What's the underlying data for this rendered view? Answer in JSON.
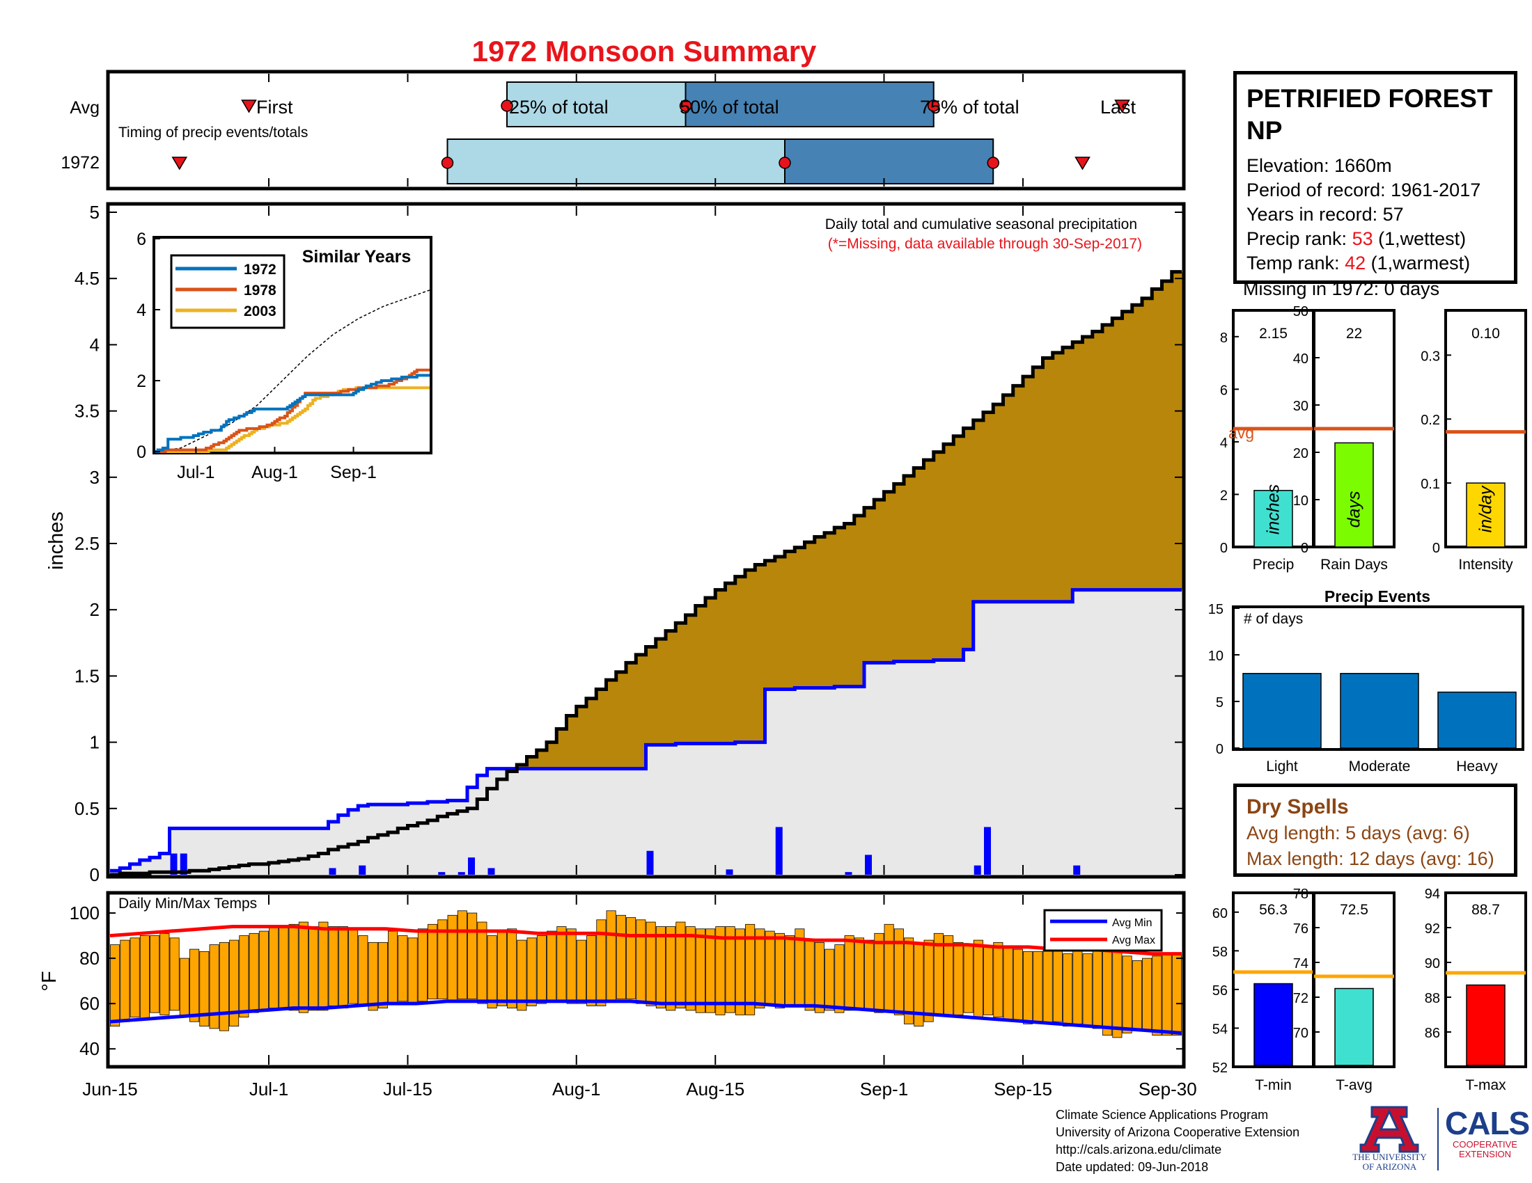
{
  "title": "1972 Monsoon Summary",
  "timing": {
    "row_labels": [
      "Avg",
      "1972"
    ],
    "caption": "Timing of precip events/totals",
    "avg_labels": {
      "first": "First",
      "p25": "25% of total",
      "p50": "50% of total",
      "p75": "75% of total",
      "last": "Last"
    }
  },
  "main": {
    "ylabel": "inches",
    "yticks": [
      "0",
      "0.5",
      "1",
      "1.5",
      "2",
      "2.5",
      "3",
      "3.5",
      "4",
      "4.5",
      "5"
    ],
    "note1": "Daily total and cumulative seasonal precipitation",
    "note2": "(*=Missing, data available through 30-Sep-2017)"
  },
  "inset": {
    "title": "Similar Years",
    "yticks": [
      "0",
      "2",
      "4",
      "6"
    ],
    "xticks": [
      "Jul-1",
      "Aug-1",
      "Sep-1"
    ],
    "legend": [
      "1972",
      "1978",
      "2003"
    ]
  },
  "temps": {
    "label": "Daily Min/Max Temps",
    "ylabel": "°F",
    "yticks": [
      "40",
      "60",
      "80",
      "100"
    ],
    "legend": [
      "Avg Min",
      "Avg Max"
    ]
  },
  "xticks": [
    "Jun-15",
    "Jul-1",
    "Jul-15",
    "Aug-1",
    "Aug-15",
    "Sep-1",
    "Sep-15",
    "Sep-30"
  ],
  "station": {
    "name": "PETRIFIED FOREST NP",
    "elevation": "Elevation: 1660m",
    "period": "Period of record: 1961-2017",
    "years": "Years in record: 57",
    "precip_rank_label": "Precip rank: ",
    "precip_rank": "53",
    "precip_rank_note": " (1,wettest)",
    "temp_rank_label": "Temp rank: ",
    "temp_rank": "42",
    "temp_rank_note": " (1,warmest)",
    "missing": "Missing in 1972: 0 days"
  },
  "mini_precip": {
    "avg_label": "avg",
    "panels": [
      {
        "name": "Precip",
        "value_text": "2.15",
        "unit": "inches",
        "yticks": [
          "0",
          "2",
          "4",
          "6",
          "8"
        ]
      },
      {
        "name": "Rain Days",
        "value_text": "22",
        "unit": "days",
        "yticks": [
          "0",
          "10",
          "20",
          "30",
          "40",
          "50"
        ]
      },
      {
        "name": "Intensity",
        "value_text": "0.10",
        "unit": "in/day",
        "yticks": [
          "0",
          "0.1",
          "0.2",
          "0.3"
        ]
      }
    ]
  },
  "events": {
    "title": "Precip Events",
    "ylabel": "# of days",
    "yticks": [
      "0",
      "5",
      "10",
      "15"
    ]
  },
  "dry_spells": {
    "title": "Dry Spells",
    "avg_length": "Avg length: 5 days (avg: 6)",
    "max_length": "Max length: 12 days (avg: 16)"
  },
  "mini_temp": {
    "panels": [
      {
        "name": "T-min",
        "value_text": "56.3",
        "yticks": [
          "52",
          "54",
          "56",
          "58",
          "60"
        ]
      },
      {
        "name": "T-avg",
        "value_text": "72.5",
        "yticks": [
          "70",
          "72",
          "74",
          "76",
          "78"
        ]
      },
      {
        "name": "T-max",
        "value_text": "88.7",
        "yticks": [
          "86",
          "88",
          "90",
          "92",
          "94"
        ]
      }
    ]
  },
  "credits": {
    "line1": "Climate Science Applications Program",
    "line2": "University of Arizona Cooperative Extension",
    "line3": "http://cals.arizona.edu/climate",
    "line4": " Date updated: 09-Jun-2018"
  },
  "logos": {
    "ua_line1": "THE UNIVERSITY",
    "ua_line2": "OF ARIZONA",
    "cals": "CALS",
    "cals_sub1": "COOPERATIVE",
    "cals_sub2": "EXTENSION"
  },
  "colors": {
    "title": "#e8141b",
    "above_avg_fill": "#b8860b",
    "below_avg_fill": "#228b22",
    "avg_fill": "#e8e8e8",
    "precip_line": "#0000ff",
    "timing_light": "#add8e6",
    "timing_dark": "#4682b4",
    "temp_bar": "#ffa500",
    "avg_min": "#0000ff",
    "avg_max": "#ff0000",
    "inset_1972": "#0072bd",
    "inset_1978": "#d95319",
    "inset_2003": "#edb120",
    "precip_bar": "#40e0d0",
    "raindays_bar": "#7cfc00",
    "intensity_bar": "#ffd700",
    "events_bar": "#0072bd",
    "avg_line": "#d95319",
    "temp_avg_line": "#ffa500",
    "tmin_bar": "#0000ff",
    "tavg_bar": "#40e0d0",
    "tmax_bar": "#ff0000"
  },
  "chart_data": [
    {
      "type": "line",
      "name": "cumulative precipitation",
      "xlabel": "",
      "ylabel": "inches",
      "x_range": [
        "Jun-15",
        "Sep-30"
      ],
      "ylim": [
        0,
        5
      ],
      "series": [
        {
          "x_days": [
            0,
            10,
            20,
            26,
            30,
            37,
            40,
            45,
            47,
            53,
            58,
            62,
            65,
            75,
            80,
            85,
            90,
            95,
            100,
            105,
            108
          ],
          "values": [
            0,
            0.03,
            0.12,
            0.25,
            0.35,
            0.5,
            0.72,
            1.0,
            1.2,
            1.6,
            1.9,
            2.15,
            2.3,
            2.65,
            2.95,
            3.25,
            3.55,
            3.9,
            4.1,
            4.35,
            4.55
          ]
        },
        {
          "x_days": [
            0,
            6,
            7,
            22,
            24,
            26,
            28,
            30,
            36,
            38,
            39,
            54,
            55,
            66,
            67,
            76,
            77,
            86,
            87,
            88,
            97,
            98,
            108
          ],
          "values": [
            0,
            0.16,
            0.35,
            0.35,
            0.45,
            0.52,
            0.53,
            0.53,
            0.56,
            0.75,
            0.8,
            0.8,
            0.98,
            1.0,
            1.4,
            1.42,
            1.6,
            1.62,
            1.7,
            2.06,
            2.06,
            2.15,
            2.15
          ]
        }
      ],
      "daily_bars": {
        "x_days": [
          6,
          7,
          22,
          25,
          33,
          35,
          36,
          38,
          54,
          62,
          67,
          74,
          76,
          87,
          88,
          97
        ],
        "values": [
          0.16,
          0.16,
          0.05,
          0.07,
          0.02,
          0.02,
          0.13,
          0.05,
          0.18,
          0.04,
          0.36,
          0.02,
          0.15,
          0.07,
          0.36,
          0.07
        ]
      }
    },
    {
      "type": "bar",
      "name": "timing",
      "categories": [
        "Avg",
        "1972"
      ],
      "series": [
        {
          "name": "First",
          "values": [
            14,
            7
          ]
        },
        {
          "name": "25% of total",
          "values": [
            40,
            34
          ]
        },
        {
          "name": "50% of total",
          "values": [
            58,
            68
          ]
        },
        {
          "name": "75% of total",
          "values": [
            83,
            89
          ]
        },
        {
          "name": "Last",
          "values": [
            102,
            98
          ]
        }
      ]
    },
    {
      "type": "line",
      "name": "Similar Years",
      "xticks": [
        "Jul-1",
        "Aug-1",
        "Sep-1"
      ],
      "ylim": [
        0,
        6
      ],
      "series": [
        {
          "name": "1972",
          "x_days": [
            0,
            5,
            6,
            15,
            20,
            26,
            30,
            35,
            40,
            52,
            56,
            60,
            65,
            78,
            83,
            88,
            92,
            100,
            108
          ],
          "values": [
            0,
            0.1,
            0.35,
            0.4,
            0.55,
            0.6,
            0.9,
            1.0,
            1.2,
            1.2,
            1.4,
            1.6,
            1.6,
            1.62,
            1.8,
            1.95,
            2.0,
            2.1,
            2.15
          ]
        },
        {
          "name": "1978",
          "x_days": [
            0,
            10,
            20,
            28,
            30,
            34,
            44,
            52,
            56,
            60,
            72,
            78,
            84,
            92,
            100,
            104,
            108
          ],
          "values": [
            0,
            0.05,
            0.05,
            0.3,
            0.4,
            0.6,
            0.7,
            1.0,
            1.3,
            1.65,
            1.65,
            1.75,
            1.8,
            1.85,
            2.1,
            2.3,
            2.3
          ]
        },
        {
          "name": "2003",
          "x_days": [
            0,
            20,
            28,
            32,
            40,
            44,
            52,
            56,
            60,
            64,
            68,
            76,
            84,
            90,
            96,
            104,
            108
          ],
          "values": [
            0,
            0.02,
            0.05,
            0.25,
            0.6,
            0.7,
            0.8,
            1.0,
            1.2,
            1.5,
            1.55,
            1.75,
            1.8,
            1.8,
            1.8,
            1.8,
            1.8
          ]
        },
        {
          "name": "avg",
          "x_days": [
            0,
            10,
            20,
            30,
            40,
            50,
            60,
            70,
            80,
            90,
            100,
            108
          ],
          "values": [
            0,
            0.1,
            0.45,
            0.8,
            1.3,
            2.0,
            2.7,
            3.3,
            3.75,
            4.1,
            4.35,
            4.55
          ]
        }
      ]
    },
    {
      "type": "bar",
      "name": "Daily Min/Max Temps",
      "ylabel": "°F",
      "ylim": [
        33,
        108
      ],
      "tmax": [
        86,
        88,
        89,
        90,
        90,
        91,
        89,
        80,
        84,
        83,
        86,
        87,
        88,
        90,
        91,
        92,
        94,
        94,
        95,
        96,
        94,
        96,
        94,
        94,
        93,
        90,
        87,
        87,
        92,
        90,
        89,
        93,
        95,
        97,
        99,
        101,
        100,
        96,
        90,
        92,
        93,
        88,
        89,
        90,
        92,
        94,
        93,
        88,
        90,
        97,
        101,
        99,
        98,
        97,
        96,
        94,
        94,
        96,
        94,
        93,
        93,
        94,
        94,
        93,
        95,
        93,
        92,
        91,
        90,
        93,
        88,
        87,
        84,
        86,
        90,
        89,
        88,
        91,
        95,
        93,
        89,
        87,
        88,
        91,
        90,
        87,
        86,
        88,
        85,
        87,
        85,
        84,
        83,
        83,
        85,
        85,
        82,
        84,
        82,
        84,
        83,
        84,
        81,
        79,
        80,
        81,
        82,
        82
      ],
      "tmin": [
        50,
        52,
        54,
        53,
        56,
        55,
        57,
        55,
        52,
        50,
        49,
        48,
        50,
        54,
        56,
        57,
        58,
        58,
        57,
        56,
        57,
        57,
        59,
        58,
        60,
        59,
        57,
        58,
        60,
        61,
        60,
        61,
        62,
        62,
        61,
        62,
        62,
        60,
        58,
        59,
        58,
        57,
        59,
        60,
        61,
        61,
        60,
        60,
        59,
        59,
        61,
        62,
        62,
        60,
        59,
        58,
        57,
        58,
        57,
        56,
        56,
        55,
        56,
        55,
        55,
        58,
        59,
        58,
        59,
        59,
        57,
        56,
        57,
        56,
        57,
        57,
        57,
        56,
        57,
        55,
        51,
        50,
        52,
        55,
        55,
        55,
        56,
        54,
        55,
        54,
        53,
        52,
        51,
        52,
        51,
        52,
        50,
        51,
        50,
        49,
        46,
        45,
        47,
        48,
        48,
        46,
        46,
        46
      ],
      "avg_min": [
        52,
        53,
        54,
        55,
        56,
        57,
        58,
        58,
        59,
        60,
        60,
        61,
        61,
        61,
        61,
        61,
        61,
        61,
        60,
        60,
        60,
        60,
        59,
        59,
        58,
        57,
        56,
        55,
        54,
        53,
        52,
        51,
        50,
        49,
        48,
        47
      ],
      "avg_max": [
        90,
        91,
        92,
        93,
        94,
        94,
        94,
        93,
        93,
        93,
        92,
        92,
        92,
        92,
        91,
        91,
        91,
        90,
        90,
        90,
        89,
        89,
        89,
        88,
        88,
        87,
        87,
        86,
        86,
        85,
        85,
        84,
        84,
        83,
        82,
        82
      ]
    },
    {
      "type": "bar",
      "name": "Precip/Rain Days/Intensity",
      "categories": [
        "Precip",
        "Rain Days",
        "Intensity"
      ],
      "values": [
        2.15,
        22,
        0.1
      ],
      "avg": [
        4.5,
        25,
        0.18
      ],
      "ylims": [
        [
          0,
          9
        ],
        [
          0,
          50
        ],
        [
          0,
          0.37
        ]
      ]
    },
    {
      "type": "bar",
      "name": "Precip Events",
      "categories": [
        "Light",
        "Moderate",
        "Heavy"
      ],
      "values": [
        8,
        8,
        6
      ],
      "ylim": [
        0,
        15
      ]
    },
    {
      "type": "bar",
      "name": "Temperature",
      "categories": [
        "T-min",
        "T-avg",
        "T-max"
      ],
      "values": [
        56.3,
        72.5,
        88.7
      ],
      "avg": [
        56.9,
        73.2,
        89.4
      ],
      "ylims": [
        [
          52,
          61
        ],
        [
          68,
          78
        ],
        [
          84,
          94
        ]
      ]
    }
  ]
}
